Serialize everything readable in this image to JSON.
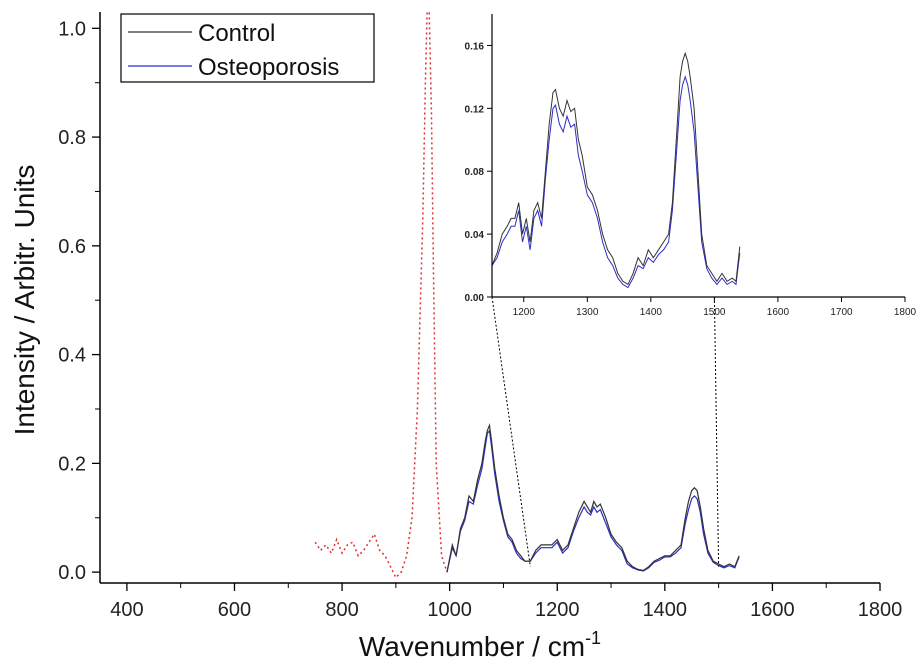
{
  "chart_data": {
    "type": "line",
    "xlabel": "Wavenumber / cm",
    "xlabel_sup": "-1",
    "ylabel": "Intensity / Arbitr. Units",
    "xlim": [
      350,
      1800
    ],
    "ylim": [
      -0.02,
      1.03
    ],
    "x_ticks": [
      400,
      600,
      800,
      1000,
      1200,
      1400,
      1600,
      1800
    ],
    "y_ticks": [
      0.0,
      0.2,
      0.4,
      0.6,
      0.8,
      1.0
    ],
    "y_tick_labels": [
      "0.0",
      "0.2",
      "0.4",
      "0.6",
      "0.8",
      "1.0"
    ],
    "legend": {
      "position": "top-left",
      "entries": [
        "Control",
        "Osteoporosis"
      ]
    },
    "series": [
      {
        "name": "Control",
        "color": "#333333",
        "x": [
          995,
          1005,
          1012,
          1020,
          1028,
          1036,
          1044,
          1052,
          1060,
          1066,
          1070,
          1074,
          1078,
          1084,
          1092,
          1100,
          1108,
          1116,
          1124,
          1132,
          1140,
          1150,
          1160,
          1170,
          1180,
          1190,
          1200,
          1210,
          1220,
          1230,
          1240,
          1250,
          1256,
          1262,
          1268,
          1274,
          1280,
          1290,
          1300,
          1310,
          1320,
          1330,
          1340,
          1350,
          1360,
          1370,
          1380,
          1390,
          1400,
          1410,
          1420,
          1430,
          1438,
          1444,
          1450,
          1455,
          1460,
          1466,
          1472,
          1480,
          1490,
          1500,
          1510,
          1520,
          1530,
          1538
        ],
        "y": [
          0.0,
          0.05,
          0.03,
          0.08,
          0.1,
          0.14,
          0.13,
          0.17,
          0.2,
          0.24,
          0.26,
          0.27,
          0.24,
          0.19,
          0.14,
          0.1,
          0.07,
          0.06,
          0.04,
          0.03,
          0.02,
          0.02,
          0.04,
          0.05,
          0.05,
          0.05,
          0.06,
          0.04,
          0.05,
          0.08,
          0.11,
          0.13,
          0.12,
          0.11,
          0.13,
          0.12,
          0.125,
          0.1,
          0.07,
          0.055,
          0.045,
          0.02,
          0.01,
          0.005,
          0.003,
          0.01,
          0.02,
          0.025,
          0.03,
          0.03,
          0.04,
          0.05,
          0.1,
          0.13,
          0.15,
          0.155,
          0.15,
          0.12,
          0.08,
          0.04,
          0.02,
          0.015,
          0.01,
          0.015,
          0.01,
          0.03
        ]
      },
      {
        "name": "Osteoporosis",
        "color": "#2d2dc8",
        "x": [
          995,
          1005,
          1012,
          1020,
          1028,
          1036,
          1044,
          1052,
          1060,
          1066,
          1070,
          1074,
          1078,
          1084,
          1092,
          1100,
          1108,
          1116,
          1124,
          1132,
          1140,
          1150,
          1160,
          1170,
          1180,
          1190,
          1200,
          1210,
          1220,
          1230,
          1240,
          1250,
          1256,
          1262,
          1268,
          1274,
          1280,
          1290,
          1300,
          1310,
          1320,
          1330,
          1340,
          1350,
          1360,
          1370,
          1380,
          1390,
          1400,
          1410,
          1420,
          1430,
          1438,
          1444,
          1450,
          1455,
          1460,
          1466,
          1472,
          1480,
          1490,
          1500,
          1510,
          1520,
          1530,
          1538
        ],
        "y": [
          0.0,
          0.045,
          0.03,
          0.075,
          0.095,
          0.13,
          0.125,
          0.16,
          0.19,
          0.23,
          0.255,
          0.26,
          0.23,
          0.18,
          0.13,
          0.095,
          0.065,
          0.055,
          0.035,
          0.025,
          0.02,
          0.02,
          0.035,
          0.045,
          0.045,
          0.045,
          0.055,
          0.035,
          0.045,
          0.075,
          0.1,
          0.12,
          0.11,
          0.105,
          0.12,
          0.11,
          0.115,
          0.09,
          0.065,
          0.05,
          0.04,
          0.015,
          0.008,
          0.004,
          0.002,
          0.008,
          0.018,
          0.022,
          0.028,
          0.028,
          0.035,
          0.045,
          0.09,
          0.115,
          0.135,
          0.14,
          0.135,
          0.11,
          0.07,
          0.035,
          0.018,
          0.012,
          0.008,
          0.012,
          0.008,
          0.028
        ]
      }
    ],
    "reference_curve": {
      "color": "#e03030",
      "style": "dotted",
      "x": [
        750,
        760,
        770,
        780,
        790,
        800,
        810,
        820,
        830,
        840,
        850,
        860,
        870,
        880,
        890,
        900,
        910,
        920,
        930,
        940,
        950,
        955,
        958,
        962,
        966,
        970,
        975,
        985,
        995
      ],
      "y": [
        0.055,
        0.04,
        0.05,
        0.035,
        0.06,
        0.035,
        0.05,
        0.055,
        0.03,
        0.04,
        0.055,
        0.07,
        0.04,
        0.03,
        0.01,
        -0.01,
        0.0,
        0.03,
        0.1,
        0.3,
        0.65,
        0.9,
        1.03,
        1.03,
        0.85,
        0.55,
        0.2,
        0.03,
        0.0
      ]
    },
    "inset": {
      "xlim": [
        1150,
        1800
      ],
      "ylim": [
        0.0,
        0.18
      ],
      "x_ticks": [
        1200,
        1300,
        1400,
        1500,
        1600,
        1700,
        1800
      ],
      "y_ticks": [
        0.0,
        0.04,
        0.08,
        0.12,
        0.16
      ],
      "y_tick_labels": [
        "0.00",
        "0.04",
        "0.08",
        "0.12",
        "0.16"
      ],
      "series": [
        {
          "name": "Control",
          "color": "#333333",
          "x": [
            1150,
            1158,
            1166,
            1174,
            1180,
            1186,
            1192,
            1198,
            1204,
            1210,
            1216,
            1222,
            1228,
            1234,
            1240,
            1246,
            1250,
            1256,
            1262,
            1268,
            1274,
            1280,
            1286,
            1292,
            1300,
            1308,
            1316,
            1324,
            1332,
            1340,
            1348,
            1356,
            1364,
            1372,
            1380,
            1388,
            1396,
            1404,
            1412,
            1420,
            1428,
            1434,
            1440,
            1446,
            1450,
            1454,
            1458,
            1462,
            1468,
            1474,
            1480,
            1488,
            1496,
            1504,
            1512,
            1520,
            1528,
            1534,
            1540
          ],
          "y": [
            0.02,
            0.028,
            0.04,
            0.045,
            0.05,
            0.05,
            0.06,
            0.04,
            0.05,
            0.035,
            0.055,
            0.06,
            0.05,
            0.08,
            0.11,
            0.13,
            0.132,
            0.12,
            0.115,
            0.125,
            0.118,
            0.12,
            0.1,
            0.09,
            0.07,
            0.065,
            0.055,
            0.04,
            0.03,
            0.025,
            0.015,
            0.01,
            0.008,
            0.015,
            0.025,
            0.02,
            0.03,
            0.025,
            0.03,
            0.035,
            0.04,
            0.06,
            0.1,
            0.14,
            0.15,
            0.155,
            0.15,
            0.14,
            0.12,
            0.08,
            0.04,
            0.02,
            0.015,
            0.01,
            0.015,
            0.01,
            0.012,
            0.01,
            0.032
          ]
        },
        {
          "name": "Osteoporosis",
          "color": "#2d2dc8",
          "x": [
            1150,
            1158,
            1166,
            1174,
            1180,
            1186,
            1192,
            1198,
            1204,
            1210,
            1216,
            1222,
            1228,
            1234,
            1240,
            1246,
            1250,
            1256,
            1262,
            1268,
            1274,
            1280,
            1286,
            1292,
            1300,
            1308,
            1316,
            1324,
            1332,
            1340,
            1348,
            1356,
            1364,
            1372,
            1380,
            1388,
            1396,
            1404,
            1412,
            1420,
            1428,
            1434,
            1440,
            1446,
            1450,
            1454,
            1458,
            1462,
            1468,
            1474,
            1480,
            1488,
            1496,
            1504,
            1512,
            1520,
            1528,
            1534,
            1540
          ],
          "y": [
            0.02,
            0.025,
            0.035,
            0.04,
            0.045,
            0.045,
            0.055,
            0.035,
            0.045,
            0.03,
            0.05,
            0.055,
            0.045,
            0.075,
            0.1,
            0.12,
            0.122,
            0.11,
            0.105,
            0.115,
            0.108,
            0.11,
            0.09,
            0.08,
            0.065,
            0.06,
            0.05,
            0.035,
            0.025,
            0.02,
            0.012,
            0.008,
            0.006,
            0.012,
            0.02,
            0.018,
            0.025,
            0.022,
            0.027,
            0.03,
            0.035,
            0.055,
            0.09,
            0.125,
            0.135,
            0.14,
            0.135,
            0.125,
            0.105,
            0.07,
            0.035,
            0.018,
            0.012,
            0.008,
            0.012,
            0.008,
            0.01,
            0.008,
            0.028
          ]
        }
      ]
    }
  }
}
